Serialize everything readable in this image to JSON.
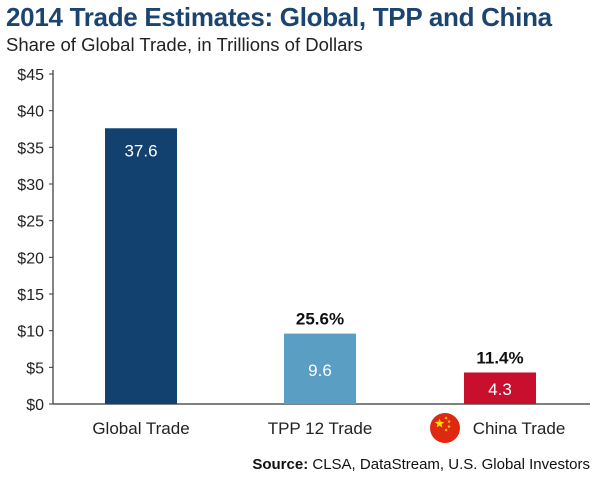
{
  "title": "2014 Trade Estimates: Global, TPP and China",
  "subtitle": "Share of Global Trade, in Trillions of Dollars",
  "source": {
    "label": "Source:",
    "text": "CLSA, DataStream, U.S. Global Investors"
  },
  "chart_data": {
    "type": "bar",
    "categories": [
      "Global Trade",
      "TPP 12 Trade",
      "China Trade"
    ],
    "values": [
      37.6,
      9.6,
      4.3
    ],
    "value_labels": [
      "37.6",
      "9.6",
      "4.3"
    ],
    "share_labels": [
      "",
      "25.6%",
      "11.4%"
    ],
    "bar_colors": [
      "#12406f",
      "#5b9ec4",
      "#c8102e"
    ],
    "category_icons": [
      "",
      "",
      "china-flag-icon"
    ],
    "yticks": [
      "$0",
      "$5",
      "$10",
      "$15",
      "$20",
      "$25",
      "$30",
      "$35",
      "$40",
      "$45"
    ],
    "ytick_values": [
      0,
      5,
      10,
      15,
      20,
      25,
      30,
      35,
      40,
      45
    ],
    "ylim": [
      0,
      45
    ],
    "xlabel": "",
    "ylabel": "",
    "grid": false
  }
}
